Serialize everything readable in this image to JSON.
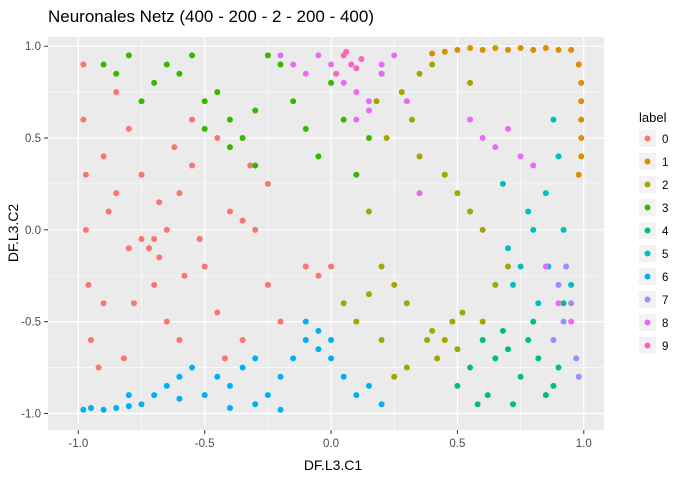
{
  "chart_data": {
    "type": "scatter",
    "title": "Neuronales Netz (400 - 200 - 2 - 200 - 400)",
    "xlabel": "DF.L3.C1",
    "ylabel": "DF.L3.C2",
    "xlim": [
      -1.12,
      1.08
    ],
    "ylim": [
      -1.09,
      1.05
    ],
    "x_ticks": [
      -1.0,
      -0.5,
      0.0,
      0.5,
      1.0
    ],
    "x_tick_labels": [
      "-1.0",
      "-0.5",
      "0.0",
      "0.5",
      "1.0"
    ],
    "y_ticks": [
      -1.0,
      -0.5,
      0.0,
      0.5,
      1.0
    ],
    "y_tick_labels": [
      "-1.0",
      "-0.5",
      "0.0",
      "0.5",
      "1.0"
    ],
    "grid": true,
    "panel_background": "#ebebeb",
    "grid_color": "#ffffff",
    "legend": {
      "title": "label",
      "position": "right"
    },
    "series": [
      {
        "name": "0",
        "color": "#F8766D",
        "x": [
          -0.98,
          -0.98,
          -0.97,
          -0.97,
          -0.96,
          -0.95,
          -0.9,
          -0.85,
          -0.8,
          -0.75,
          -0.72,
          -0.7,
          -0.68,
          -0.65,
          -0.6,
          -0.55,
          -0.5,
          -0.45,
          -0.4,
          -0.35,
          -0.3,
          -0.25,
          -0.2,
          -0.1,
          -0.05,
          0.0,
          -0.9,
          -0.8,
          -0.7,
          -0.6,
          -0.85,
          -0.75,
          -0.65,
          -0.55,
          -0.45,
          -0.35,
          -0.25,
          -0.92,
          -0.82,
          -0.62,
          -0.52,
          -0.42,
          -0.32,
          -0.88,
          -0.78,
          -0.68,
          -0.58
        ],
        "y": [
          0.9,
          0.6,
          0.3,
          0.0,
          -0.3,
          -0.6,
          0.4,
          0.2,
          -0.1,
          -0.05,
          -0.1,
          -0.05,
          -0.15,
          0.0,
          0.2,
          0.35,
          -0.2,
          -0.45,
          0.1,
          0.05,
          0.0,
          -0.3,
          -0.5,
          -0.2,
          -0.25,
          -0.2,
          -0.4,
          0.55,
          -0.3,
          -0.6,
          0.75,
          0.3,
          -0.5,
          0.6,
          0.5,
          -0.6,
          0.25,
          -0.75,
          -0.7,
          0.45,
          -0.05,
          -0.7,
          0.35,
          0.1,
          -0.4,
          0.15,
          -0.25
        ]
      },
      {
        "name": "1",
        "color": "#D89000",
        "x": [
          0.5,
          0.55,
          0.6,
          0.65,
          0.7,
          0.75,
          0.8,
          0.85,
          0.9,
          0.95,
          0.98,
          0.99,
          0.99,
          0.99,
          0.99,
          0.99,
          0.98,
          0.45,
          0.4
        ],
        "y": [
          0.98,
          0.99,
          0.98,
          0.99,
          0.98,
          0.99,
          0.98,
          0.99,
          0.98,
          0.98,
          0.9,
          0.8,
          0.7,
          0.6,
          0.5,
          0.4,
          0.3,
          0.97,
          0.96
        ]
      },
      {
        "name": "2",
        "color": "#A3A500",
        "x": [
          0.4,
          0.45,
          0.5,
          0.42,
          0.48,
          0.52,
          0.38,
          0.3,
          0.25,
          0.2,
          0.15,
          0.6,
          0.65,
          0.7,
          0.55,
          0.35,
          0.28,
          0.32,
          0.22,
          0.18,
          0.45,
          0.5,
          0.55,
          0.6,
          0.3,
          0.25,
          0.2,
          0.1,
          0.05,
          0.15,
          0.4,
          0.35
        ],
        "y": [
          -0.55,
          -0.6,
          -0.65,
          -0.7,
          -0.5,
          -0.45,
          -0.6,
          -0.4,
          -0.3,
          -0.2,
          -0.35,
          -0.5,
          -0.3,
          -0.2,
          0.8,
          0.85,
          0.75,
          0.6,
          0.5,
          0.7,
          0.3,
          0.2,
          0.1,
          0.0,
          -0.75,
          -0.8,
          -0.6,
          -0.5,
          -0.4,
          0.1,
          0.9,
          0.4
        ]
      },
      {
        "name": "3",
        "color": "#39B600",
        "x": [
          -0.9,
          -0.85,
          -0.8,
          -0.7,
          -0.6,
          -0.5,
          -0.45,
          -0.4,
          -0.35,
          -0.3,
          -0.2,
          -0.15,
          -0.1,
          0.0,
          0.05,
          -0.55,
          -0.65,
          -0.75,
          -0.25,
          -0.05,
          0.1,
          0.15,
          -0.5,
          -0.4,
          -0.3,
          0.2
        ],
        "y": [
          0.9,
          0.85,
          0.95,
          0.8,
          0.85,
          0.7,
          0.75,
          0.6,
          0.5,
          0.65,
          0.9,
          0.7,
          0.55,
          0.8,
          0.6,
          0.95,
          0.9,
          0.7,
          0.95,
          0.4,
          0.3,
          0.5,
          0.55,
          0.45,
          0.35,
          0.85
        ]
      },
      {
        "name": "4",
        "color": "#00BF7D",
        "x": [
          0.6,
          0.65,
          0.7,
          0.75,
          0.8,
          0.85,
          0.55,
          0.5,
          0.68,
          0.72,
          0.78,
          0.82,
          0.9,
          0.62,
          0.58,
          0.88,
          0.92
        ],
        "y": [
          -0.6,
          -0.7,
          -0.65,
          -0.8,
          -0.5,
          -0.9,
          -0.75,
          -0.85,
          -0.55,
          -0.95,
          -0.6,
          -0.7,
          -0.75,
          -0.9,
          -0.95,
          -0.85,
          -0.4
        ]
      },
      {
        "name": "5",
        "color": "#00BFC4",
        "x": [
          0.7,
          0.75,
          0.8,
          0.85,
          0.9,
          0.95,
          0.78,
          0.82,
          0.88,
          0.72,
          0.92,
          0.68,
          0.86
        ],
        "y": [
          -0.1,
          -0.2,
          0.0,
          0.2,
          0.4,
          -0.3,
          0.1,
          -0.4,
          0.6,
          -0.3,
          0.0,
          0.25,
          -0.2
        ]
      },
      {
        "name": "6",
        "color": "#00B0F6",
        "x": [
          -0.98,
          -0.95,
          -0.9,
          -0.85,
          -0.8,
          -0.75,
          -0.7,
          -0.65,
          -0.6,
          -0.55,
          -0.5,
          -0.45,
          -0.4,
          -0.35,
          -0.3,
          -0.25,
          -0.2,
          -0.15,
          -0.1,
          -0.05,
          0.0,
          0.05,
          -0.1,
          -0.05,
          0.0,
          0.1,
          0.15,
          0.2,
          -0.3,
          -0.2,
          -0.4,
          -0.6,
          -0.8
        ],
        "y": [
          -0.98,
          -0.97,
          -0.98,
          -0.97,
          -0.96,
          -0.95,
          -0.9,
          -0.85,
          -0.8,
          -0.75,
          -0.9,
          -0.8,
          -0.85,
          -0.75,
          -0.7,
          -0.9,
          -0.8,
          -0.7,
          -0.6,
          -0.65,
          -0.7,
          -0.8,
          -0.5,
          -0.55,
          -0.6,
          -0.9,
          -0.85,
          -0.95,
          -0.95,
          -0.98,
          -0.97,
          -0.92,
          -0.9
        ]
      },
      {
        "name": "7",
        "color": "#9590FF",
        "x": [
          0.9,
          0.92,
          0.95,
          0.97,
          0.88,
          0.93,
          0.98
        ],
        "y": [
          -0.3,
          -0.5,
          -0.4,
          -0.7,
          -0.6,
          -0.2,
          -0.8
        ]
      },
      {
        "name": "8",
        "color": "#E76BF3",
        "x": [
          -0.2,
          -0.15,
          -0.1,
          -0.05,
          0.0,
          0.05,
          0.1,
          0.15,
          0.2,
          0.25,
          0.6,
          0.65,
          0.7,
          0.75,
          0.8,
          0.1,
          0.15,
          0.2,
          0.85,
          0.9,
          0.95,
          0.55,
          0.3,
          0.35
        ],
        "y": [
          0.95,
          0.9,
          0.85,
          0.95,
          0.9,
          0.8,
          0.75,
          0.7,
          0.9,
          0.95,
          0.5,
          0.45,
          0.55,
          0.4,
          0.35,
          0.6,
          0.65,
          0.85,
          -0.2,
          -0.4,
          -0.5,
          0.6,
          0.7,
          0.2
        ]
      },
      {
        "name": "9",
        "color": "#FF62BC",
        "x": [
          0.05,
          0.08,
          0.02,
          0.1,
          0.12,
          0.06
        ],
        "y": [
          0.95,
          0.9,
          0.85,
          0.88,
          0.93,
          0.97
        ]
      }
    ]
  }
}
